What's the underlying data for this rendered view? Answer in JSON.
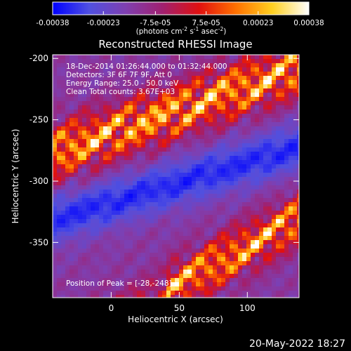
{
  "chart_data": {
    "type": "heatmap",
    "title": "Reconstructed RHESSI Image",
    "xlabel": "Heliocentric X (arcsec)",
    "ylabel": "Heliocentric Y (arcsec)",
    "xlim": [
      -43,
      138
    ],
    "ylim": [
      -395,
      -197
    ],
    "x_ticks": [
      0,
      50,
      100
    ],
    "y_ticks": [
      -200,
      -250,
      -300,
      -350
    ],
    "annotations": [
      "18-Dec-2014 01:26:44.000 to 01:32:44.000",
      "Detectors: 3F 6F 7F 9F, Att 0",
      "Energy Range: 25.0 - 50.0 keV",
      "Clean     Total counts: 3.67E+03"
    ],
    "peak_label": "Position of Peak = [-28,-248]",
    "peak": [
      -28,
      -248
    ],
    "colorbar": {
      "ticks": [
        "-0.00038",
        "-0.00023",
        "-7.5e-05",
        "7.5e-05",
        "0.00023",
        "0.00038"
      ],
      "range": [
        -0.00038,
        0.00038
      ],
      "unit_prefix": "(photons cm",
      "unit_exp1": "-2",
      "unit_mid": " s",
      "unit_exp2": "-1",
      "unit_end": " asec",
      "unit_exp3": "-2",
      "unit_close": ")"
    },
    "timestamp": "20-May-2022 18:27",
    "colors": {
      "background": "#000000",
      "text": "#ffffff",
      "colormap": [
        "#0000ff",
        "#5050e0",
        "#7f3fb0",
        "#a02070",
        "#e01010",
        "#ff7000",
        "#ffd020",
        "#ffffff"
      ]
    }
  }
}
